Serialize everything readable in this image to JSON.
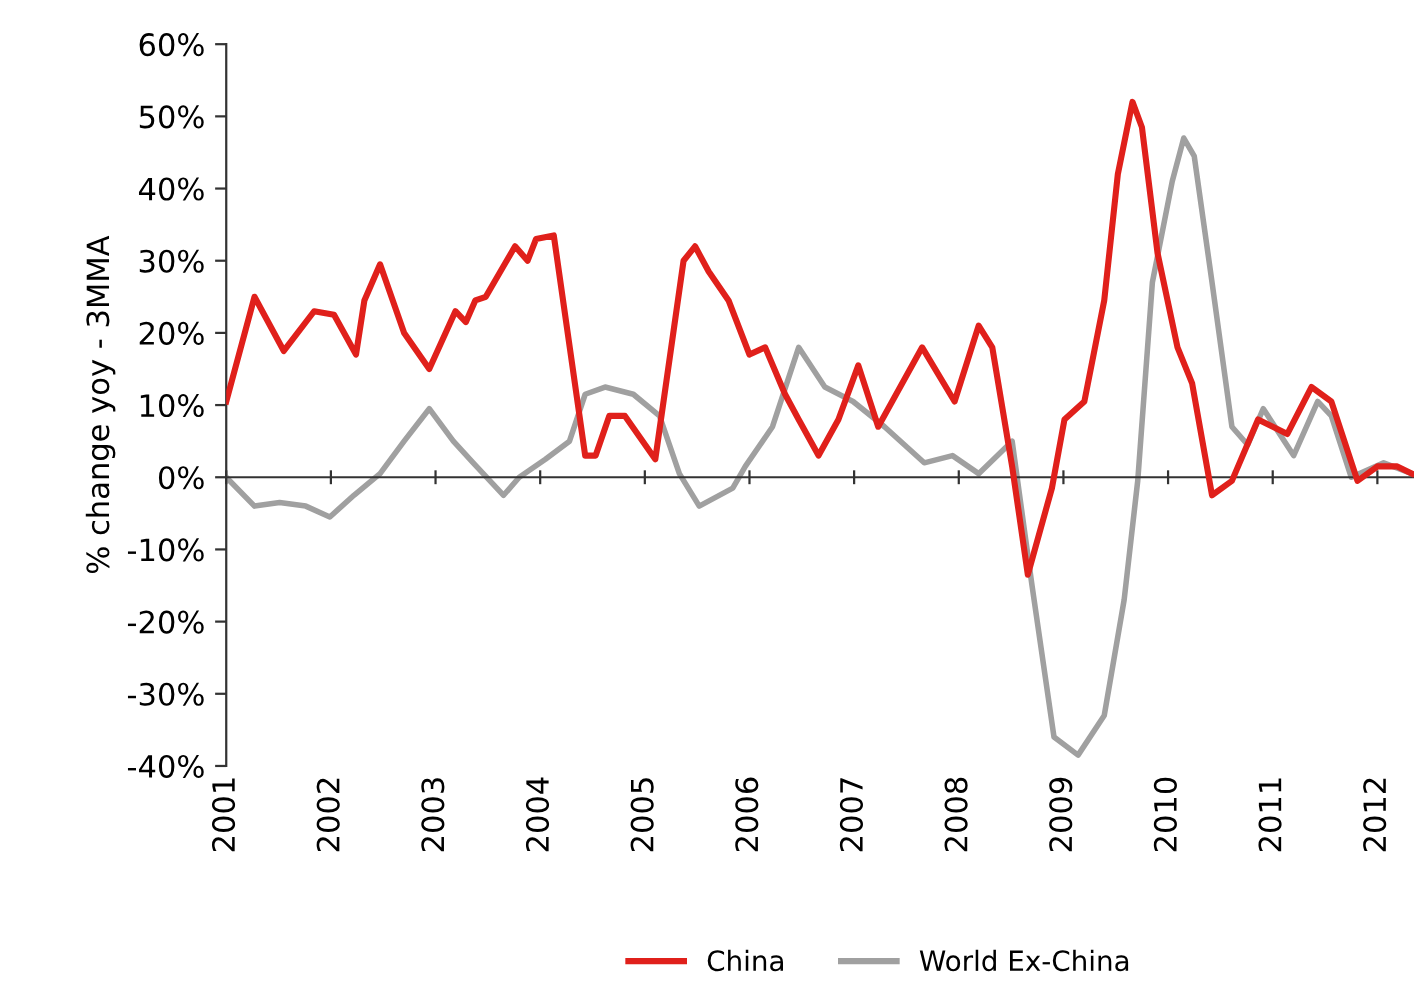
{
  "chart_data": {
    "type": "line",
    "ylabel": "% change yoy - 3MMA",
    "xlim": [
      2001,
      2012.35
    ],
    "xticks": [
      2001,
      2002,
      2003,
      2004,
      2005,
      2006,
      2007,
      2008,
      2009,
      2010,
      2011,
      2012
    ],
    "ylim": [
      -40,
      60
    ],
    "yticks": [
      {
        "value": -40,
        "label": "-40%"
      },
      {
        "value": -30,
        "label": "-30%"
      },
      {
        "value": -20,
        "label": "-20%"
      },
      {
        "value": -10,
        "label": "-10%"
      },
      {
        "value": 0,
        "label": "0%"
      },
      {
        "value": 10,
        "label": "10%"
      },
      {
        "value": 20,
        "label": "20%"
      },
      {
        "value": 30,
        "label": "30%"
      },
      {
        "value": 40,
        "label": "40%"
      },
      {
        "value": 50,
        "label": "50%"
      },
      {
        "value": 60,
        "label": "60%"
      }
    ],
    "legend": "bottom",
    "line_style": "solid",
    "series": [
      {
        "name": "China",
        "color": "#e0201b",
        "x": [
          2001.0,
          2001.27,
          2001.55,
          2001.84,
          2002.03,
          2002.24,
          2002.32,
          2002.47,
          2002.7,
          2002.94,
          2003.19,
          2003.29,
          2003.38,
          2003.48,
          2003.76,
          2003.88,
          2003.96,
          2004.13,
          2004.43,
          2004.53,
          2004.66,
          2004.81,
          2005.1,
          2005.37,
          2005.48,
          2005.61,
          2005.8,
          2006.0,
          2006.15,
          2006.34,
          2006.47,
          2006.66,
          2006.85,
          2007.04,
          2007.23,
          2007.65,
          2007.96,
          2008.19,
          2008.32,
          2008.51,
          2008.66,
          2008.89,
          2009.01,
          2009.2,
          2009.39,
          2009.52,
          2009.66,
          2009.75,
          2009.9,
          2010.09,
          2010.23,
          2010.42,
          2010.61,
          2010.86,
          2011.14,
          2011.37,
          2011.56,
          2011.81,
          2012.0,
          2012.19,
          2012.33
        ],
        "values": [
          10.5,
          25,
          17.5,
          23,
          22.5,
          17,
          24.5,
          29.5,
          20,
          15,
          23,
          21.5,
          24.5,
          25,
          32,
          30,
          33,
          33.5,
          3,
          3,
          8.5,
          8.5,
          2.5,
          30,
          32,
          28.5,
          24.5,
          17,
          18,
          11.5,
          8,
          3,
          8,
          15.5,
          7,
          18,
          10.5,
          21,
          18,
          1.5,
          -13.5,
          -1.5,
          8,
          10.5,
          24.5,
          42,
          52,
          48.5,
          31,
          18,
          13,
          -2.5,
          -0.5,
          8,
          6,
          12.5,
          10.5,
          -0.5,
          1.5,
          1.5,
          0.5
        ]
      },
      {
        "name": "World Ex-China",
        "color": "#a0a0a0",
        "x": [
          2001.0,
          2001.27,
          2001.51,
          2001.76,
          2001.99,
          2002.22,
          2002.47,
          2002.7,
          2002.94,
          2003.17,
          2003.36,
          2003.65,
          2003.8,
          2004.05,
          2004.28,
          2004.43,
          2004.62,
          2004.89,
          2005.14,
          2005.33,
          2005.52,
          2005.84,
          2005.96,
          2006.22,
          2006.47,
          2006.72,
          2006.99,
          2007.29,
          2007.67,
          2007.94,
          2008.19,
          2008.51,
          2008.7,
          2008.91,
          2009.14,
          2009.39,
          2009.58,
          2009.71,
          2009.85,
          2010.04,
          2010.15,
          2010.25,
          2010.42,
          2010.61,
          2010.76,
          2010.91,
          2011.2,
          2011.43,
          2011.56,
          2011.75,
          2012.06,
          2012.33
        ],
        "values": [
          0,
          -4,
          -3.5,
          -4,
          -5.5,
          -2.5,
          0.5,
          5,
          9.5,
          5,
          2,
          -2.5,
          0,
          2.5,
          5,
          11.5,
          12.5,
          11.5,
          8.5,
          0.5,
          -4,
          -1.5,
          1.5,
          7,
          18,
          12.5,
          10.5,
          7,
          2,
          3,
          0.5,
          5,
          -15,
          -36,
          -38.5,
          -33,
          -17,
          -0.5,
          27,
          41,
          47,
          44.5,
          27,
          7,
          4.5,
          9.5,
          3,
          10.5,
          8.5,
          0,
          2,
          0.5
        ]
      }
    ]
  }
}
